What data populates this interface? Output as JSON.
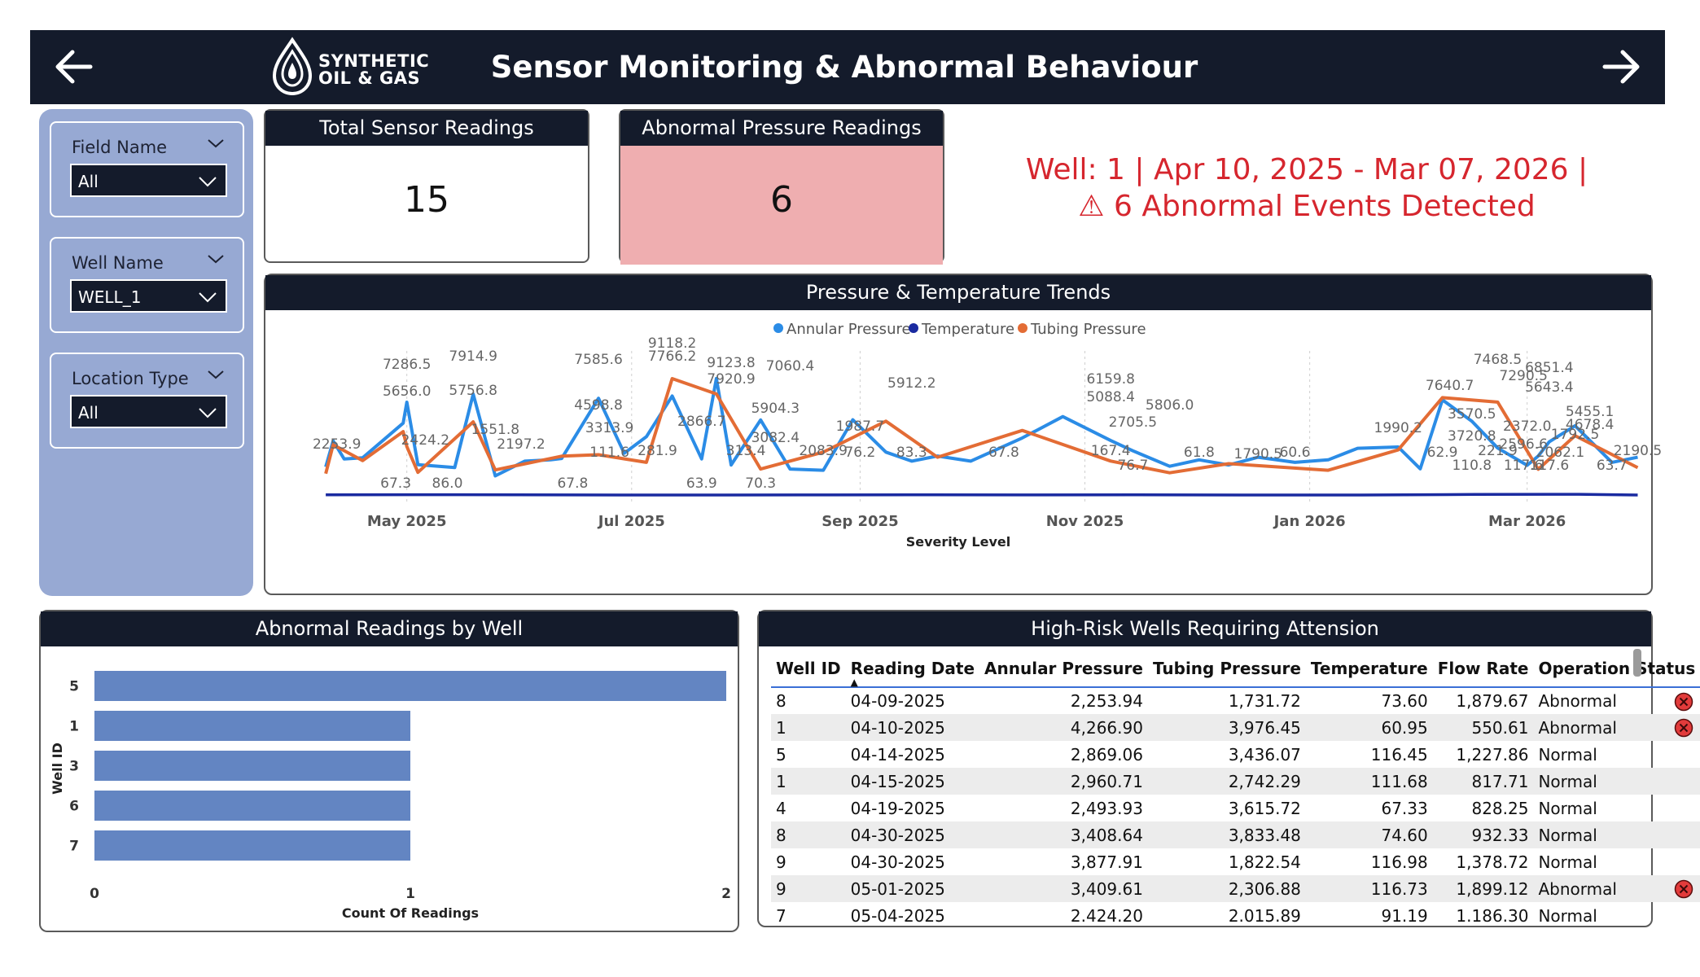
{
  "header": {
    "title": "Sensor Monitoring & Abnormal Behaviour",
    "logo_line1": "SYNTHETIC",
    "logo_line2": "OIL & GAS"
  },
  "slicers": [
    {
      "label": "Field Name",
      "value": "All"
    },
    {
      "label": "Well Name",
      "value": "WELL_1"
    },
    {
      "label": "Location Type",
      "value": "All"
    }
  ],
  "kpis": {
    "total": {
      "title": "Total Sensor Readings",
      "value": "15"
    },
    "abnormal": {
      "title": "Abnormal Pressure Readings",
      "value": "6"
    }
  },
  "alert": {
    "line1": "Well: 1 | Apr 10, 2025 - Mar 07, 2026 |",
    "line2": "⚠ 6 Abnormal Events Detected"
  },
  "colors": {
    "annular": "#2b8ce6",
    "temperature": "#1a2aa0",
    "tubing": "#e36c35",
    "bar": "#6385c2",
    "header": "#141b2b"
  },
  "trend_chart": {
    "title": "Pressure & Temperature Trends",
    "legend": [
      "Annular Pressure",
      "Temperature",
      "Tubing Pressure"
    ],
    "x_ticks": [
      "May 2025",
      "Jul 2025",
      "Sep 2025",
      "Nov 2025",
      "Jan 2026",
      "Mar 2026"
    ],
    "xlabel": "Severity Level",
    "labels": [
      "2253.9",
      "67.3",
      "7286.5",
      "5656.0",
      "2424.2",
      "86.0",
      "7914.9",
      "5756.8",
      "1551.8",
      "2197.2",
      "67.8",
      "7585.6",
      "4598.8",
      "3313.9",
      "111.6",
      "9118.2",
      "7766.2",
      "281.9",
      "63.9",
      "2866.7",
      "9123.8",
      "7920.9",
      "313.4",
      "70.3",
      "5904.3",
      "3082.4",
      "7060.4",
      "2083.9",
      "1987.7",
      "76.2",
      "5912.2",
      "83.3",
      "67.8",
      "6159.8",
      "5088.4",
      "2705.5",
      "167.4",
      "76.7",
      "5806.0",
      "61.8",
      "1790.5",
      "60.6",
      "1990.2",
      "62.9",
      "110.8",
      "7640.7",
      "3570.5",
      "3720.8",
      "221.9",
      "7468.5",
      "7290.5",
      "2372.0",
      "2596.6",
      "117.6",
      "1792.5",
      "6851.4",
      "5643.4",
      "2062.1",
      "117.6",
      "5455.1",
      "4678.4",
      "2190.5",
      "63.7"
    ]
  },
  "chart_data": [
    {
      "type": "line",
      "title": "Pressure & Temperature Trends",
      "xlabel": "Severity Level",
      "x_ticks": [
        "May 2025",
        "Jul 2025",
        "Sep 2025",
        "Nov 2025",
        "Jan 2026",
        "Mar 2026"
      ],
      "x_range": [
        "2025-04-05",
        "2026-04-01"
      ],
      "series": [
        {
          "name": "Annular Pressure",
          "x": [
            "2025-04-09",
            "2025-04-11",
            "2025-04-14",
            "2025-04-19",
            "2025-04-30",
            "2025-05-01",
            "2025-05-04",
            "2025-05-14",
            "2025-05-19",
            "2025-05-25",
            "2025-06-02",
            "2025-06-09",
            "2025-06-12",
            "2025-06-22",
            "2025-06-29",
            "2025-07-05",
            "2025-07-12",
            "2025-07-20",
            "2025-07-24",
            "2025-07-28",
            "2025-08-05",
            "2025-08-13",
            "2025-08-22",
            "2025-08-30",
            "2025-09-08",
            "2025-09-15",
            "2025-09-22",
            "2025-10-01",
            "2025-10-15",
            "2025-10-26",
            "2025-11-08",
            "2025-11-14",
            "2025-11-24",
            "2025-12-02",
            "2025-12-10",
            "2025-12-18",
            "2025-12-28",
            "2026-01-06",
            "2026-01-14",
            "2026-01-25",
            "2026-01-31",
            "2026-02-06",
            "2026-02-14",
            "2026-02-21",
            "2026-03-01",
            "2026-03-04",
            "2026-03-07",
            "2026-03-14",
            "2026-03-24",
            "2026-03-31"
          ],
          "values": [
            2253.9,
            4266.9,
            2869.1,
            2960.7,
            5656.0,
            7286.5,
            2424.2,
            2197.2,
            7914.9,
            1551.8,
            2700,
            2800,
            2900,
            7585.6,
            3313.9,
            4598.8,
            7766.2,
            2866.7,
            9123.8,
            2400,
            5904.3,
            2083.9,
            1987.7,
            5912.2,
            3400,
            2700,
            3100,
            2700,
            4500,
            6159.8,
            4300,
            3500,
            2300,
            2800,
            2400,
            3000,
            2600,
            2800,
            3700,
            3800,
            2100,
            7468.5,
            5800,
            3720.8,
            2372.0,
            3100,
            4200,
            5455.1,
            2600,
            3000
          ]
        },
        {
          "name": "Temperature",
          "x": [
            "2025-04-09",
            "2025-05-15",
            "2025-06-15",
            "2025-07-15",
            "2025-08-15",
            "2025-09-15",
            "2025-10-15",
            "2025-11-15",
            "2025-12-15",
            "2026-01-15",
            "2026-02-15",
            "2026-03-15",
            "2026-03-31"
          ],
          "values": [
            73.6,
            86.0,
            67.8,
            63.9,
            70.3,
            83.3,
            67.8,
            76.7,
            61.8,
            62.9,
            110.8,
            117.6,
            63.7
          ]
        },
        {
          "name": "Tubing Pressure",
          "x": [
            "2025-04-09",
            "2025-04-11",
            "2025-04-19",
            "2025-04-30",
            "2025-05-01",
            "2025-05-04",
            "2025-05-19",
            "2025-05-25",
            "2025-06-12",
            "2025-06-22",
            "2025-07-05",
            "2025-07-12",
            "2025-07-24",
            "2025-08-05",
            "2025-08-22",
            "2025-09-08",
            "2025-09-22",
            "2025-10-15",
            "2025-11-08",
            "2025-11-24",
            "2025-12-10",
            "2026-01-06",
            "2026-01-25",
            "2026-02-06",
            "2026-02-21",
            "2026-03-04",
            "2026-03-14",
            "2026-03-31"
          ],
          "values": [
            1731.7,
            3976.5,
            2742.3,
            5000,
            3833.5,
            1822.5,
            5756.8,
            2015.9,
            3082.4,
            3200,
            2600,
            9118.2,
            7920.9,
            2083.9,
            3400,
            5806.0,
            3000,
            5088.4,
            2705.5,
            1790.5,
            2500,
            1990.2,
            3570.5,
            7640.7,
            7290.5,
            2062.1,
            4678.4,
            2190.5
          ]
        }
      ]
    },
    {
      "type": "bar",
      "title": "Abnormal Readings by Well",
      "orientation": "horizontal",
      "categories": [
        "5",
        "1",
        "3",
        "6",
        "7"
      ],
      "values": [
        2,
        1,
        1,
        1,
        1
      ],
      "xlabel": "Count Of Readings",
      "ylabel": "Well ID",
      "xlim": [
        0,
        2
      ],
      "x_ticks": [
        "0",
        "1",
        "2"
      ]
    }
  ],
  "table": {
    "title": "High-Risk Wells Requiring Attension",
    "columns": [
      "Well ID",
      "Reading Date",
      "Annular Pressure",
      "Tubing Pressure",
      "Temperature",
      "Flow Rate",
      "Operation Status"
    ],
    "rows": [
      {
        "well": "8",
        "date": "04-09-2025",
        "annular": "2,253.94",
        "tubing": "1,731.72",
        "temp": "73.60",
        "flow": "1,879.67",
        "status": "Abnormal"
      },
      {
        "well": "1",
        "date": "04-10-2025",
        "annular": "4,266.90",
        "tubing": "3,976.45",
        "temp": "60.95",
        "flow": "550.61",
        "status": "Abnormal"
      },
      {
        "well": "5",
        "date": "04-14-2025",
        "annular": "2,869.06",
        "tubing": "3,436.07",
        "temp": "116.45",
        "flow": "1,227.86",
        "status": "Normal"
      },
      {
        "well": "1",
        "date": "04-15-2025",
        "annular": "2,960.71",
        "tubing": "2,742.29",
        "temp": "111.68",
        "flow": "817.71",
        "status": "Normal"
      },
      {
        "well": "4",
        "date": "04-19-2025",
        "annular": "2,493.93",
        "tubing": "3,615.72",
        "temp": "67.33",
        "flow": "828.25",
        "status": "Normal"
      },
      {
        "well": "8",
        "date": "04-30-2025",
        "annular": "3,408.64",
        "tubing": "3,833.48",
        "temp": "74.60",
        "flow": "932.33",
        "status": "Normal"
      },
      {
        "well": "9",
        "date": "04-30-2025",
        "annular": "3,877.91",
        "tubing": "1,822.54",
        "temp": "116.98",
        "flow": "1,378.72",
        "status": "Normal"
      },
      {
        "well": "9",
        "date": "05-01-2025",
        "annular": "3,409.61",
        "tubing": "2,306.88",
        "temp": "116.73",
        "flow": "1,899.12",
        "status": "Abnormal"
      },
      {
        "well": "7",
        "date": "05-04-2025",
        "annular": "2.424.20",
        "tubing": "2.015.89",
        "temp": "91.19",
        "flow": "1.186.30",
        "status": "Normal"
      }
    ]
  }
}
